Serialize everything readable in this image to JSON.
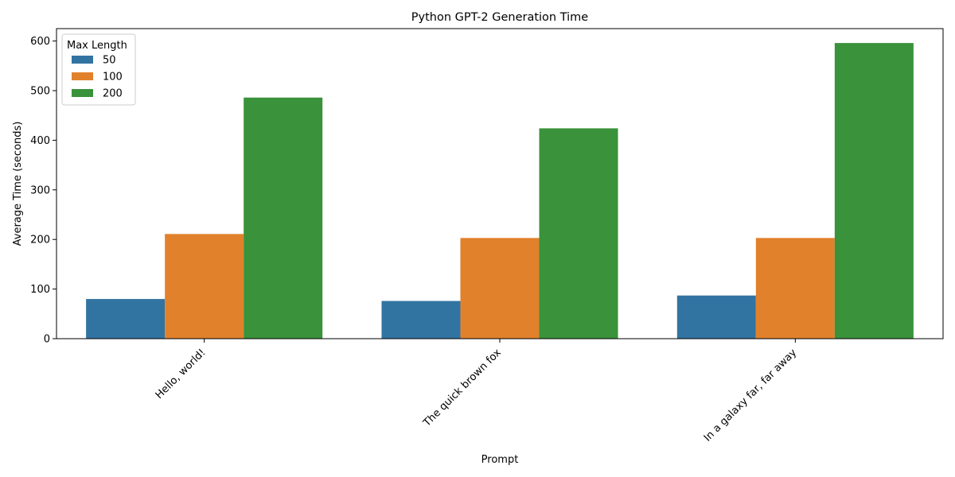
{
  "chart_data": {
    "type": "bar",
    "title": "Python GPT-2 Generation Time",
    "xlabel": "Prompt",
    "ylabel": "Average Time (seconds)",
    "categories": [
      "Hello, world!",
      "The quick brown fox",
      "In a galaxy far, far away"
    ],
    "ylim": [
      0,
      625
    ],
    "yticks": [
      0,
      100,
      200,
      300,
      400,
      500,
      600
    ],
    "grid": false,
    "legend": {
      "title": "Max Length",
      "placement": "top-left"
    },
    "series": [
      {
        "name": "50",
        "color": "#3274a1",
        "values": [
          80,
          76,
          87
        ]
      },
      {
        "name": "100",
        "color": "#e1812c",
        "values": [
          211,
          203,
          203
        ]
      },
      {
        "name": "200",
        "color": "#3a923a",
        "values": [
          486,
          424,
          596
        ]
      }
    ]
  }
}
